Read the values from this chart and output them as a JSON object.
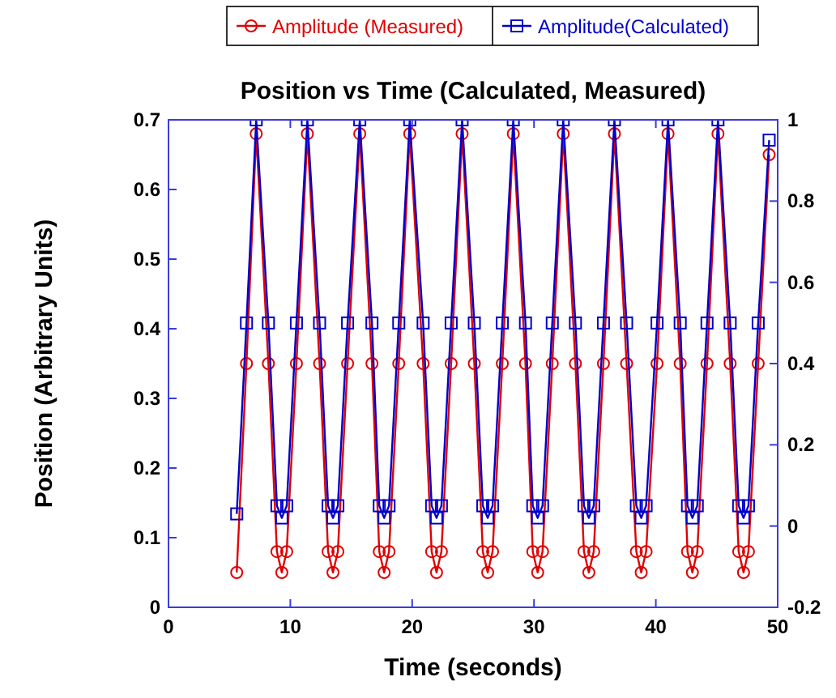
{
  "chart_data": {
    "type": "line",
    "title": "Position vs Time (Calculated, Measured)",
    "xlabel": "Time (seconds)",
    "ylabel": "Position (Arbitrary Units)",
    "x": [
      5.6,
      6.4,
      7.2,
      8.2,
      8.9,
      9.3,
      9.7,
      10.5,
      11.4,
      12.4,
      13.1,
      13.5,
      13.9,
      14.7,
      15.7,
      16.7,
      17.3,
      17.7,
      18.1,
      18.9,
      19.8,
      20.9,
      21.6,
      22.0,
      22.4,
      23.2,
      24.1,
      25.1,
      25.8,
      26.2,
      26.6,
      27.4,
      28.3,
      29.3,
      29.9,
      30.3,
      30.7,
      31.5,
      32.4,
      33.4,
      34.1,
      34.5,
      34.9,
      35.7,
      36.6,
      37.6,
      38.4,
      38.8,
      39.2,
      40.1,
      41.0,
      42.0,
      42.6,
      43.0,
      43.4,
      44.2,
      45.1,
      46.1,
      46.8,
      47.2,
      47.6,
      48.4,
      49.3
    ],
    "series": [
      {
        "name": "Amplitude (Measured)",
        "color": "#e00000",
        "marker": "circle",
        "values": [
          0.05,
          0.35,
          0.68,
          0.35,
          0.08,
          0.05,
          0.08,
          0.35,
          0.68,
          0.35,
          0.08,
          0.05,
          0.08,
          0.35,
          0.68,
          0.35,
          0.08,
          0.05,
          0.08,
          0.35,
          0.68,
          0.35,
          0.08,
          0.05,
          0.08,
          0.35,
          0.68,
          0.35,
          0.08,
          0.05,
          0.08,
          0.35,
          0.68,
          0.35,
          0.08,
          0.05,
          0.08,
          0.35,
          0.68,
          0.35,
          0.08,
          0.05,
          0.08,
          0.35,
          0.68,
          0.35,
          0.08,
          0.05,
          0.08,
          0.35,
          0.68,
          0.35,
          0.08,
          0.05,
          0.08,
          0.35,
          0.68,
          0.35,
          0.08,
          0.05,
          0.08,
          0.35,
          0.65
        ]
      },
      {
        "name": "Amplitude(Calculated)",
        "color": "#0000cc",
        "marker": "square",
        "axis": "y2",
        "values": [
          0.03,
          0.5,
          1,
          0.5,
          0.05,
          0.02,
          0.05,
          0.5,
          1,
          0.5,
          0.05,
          0.02,
          0.05,
          0.5,
          1,
          0.5,
          0.05,
          0.02,
          0.05,
          0.5,
          1,
          0.5,
          0.05,
          0.02,
          0.05,
          0.5,
          1,
          0.5,
          0.05,
          0.02,
          0.05,
          0.5,
          1,
          0.5,
          0.05,
          0.02,
          0.05,
          0.5,
          1,
          0.5,
          0.05,
          0.02,
          0.05,
          0.5,
          1,
          0.5,
          0.05,
          0.02,
          0.05,
          0.5,
          1,
          0.5,
          0.05,
          0.02,
          0.05,
          0.5,
          1,
          0.5,
          0.05,
          0.02,
          0.05,
          0.5,
          0.95
        ]
      }
    ],
    "xlim": [
      0,
      50
    ],
    "xticks": [
      0,
      10,
      20,
      30,
      40,
      50
    ],
    "ylim": [
      0,
      0.7
    ],
    "yticks": [
      0,
      0.1,
      0.2,
      0.3,
      0.4,
      0.5,
      0.6,
      0.7
    ],
    "y2lim": [
      -0.2,
      1
    ],
    "y2ticks": [
      -0.2,
      0,
      0.2,
      0.4,
      0.6,
      0.8,
      1
    ],
    "legend": "top",
    "grid": false,
    "line_style": "solid"
  }
}
